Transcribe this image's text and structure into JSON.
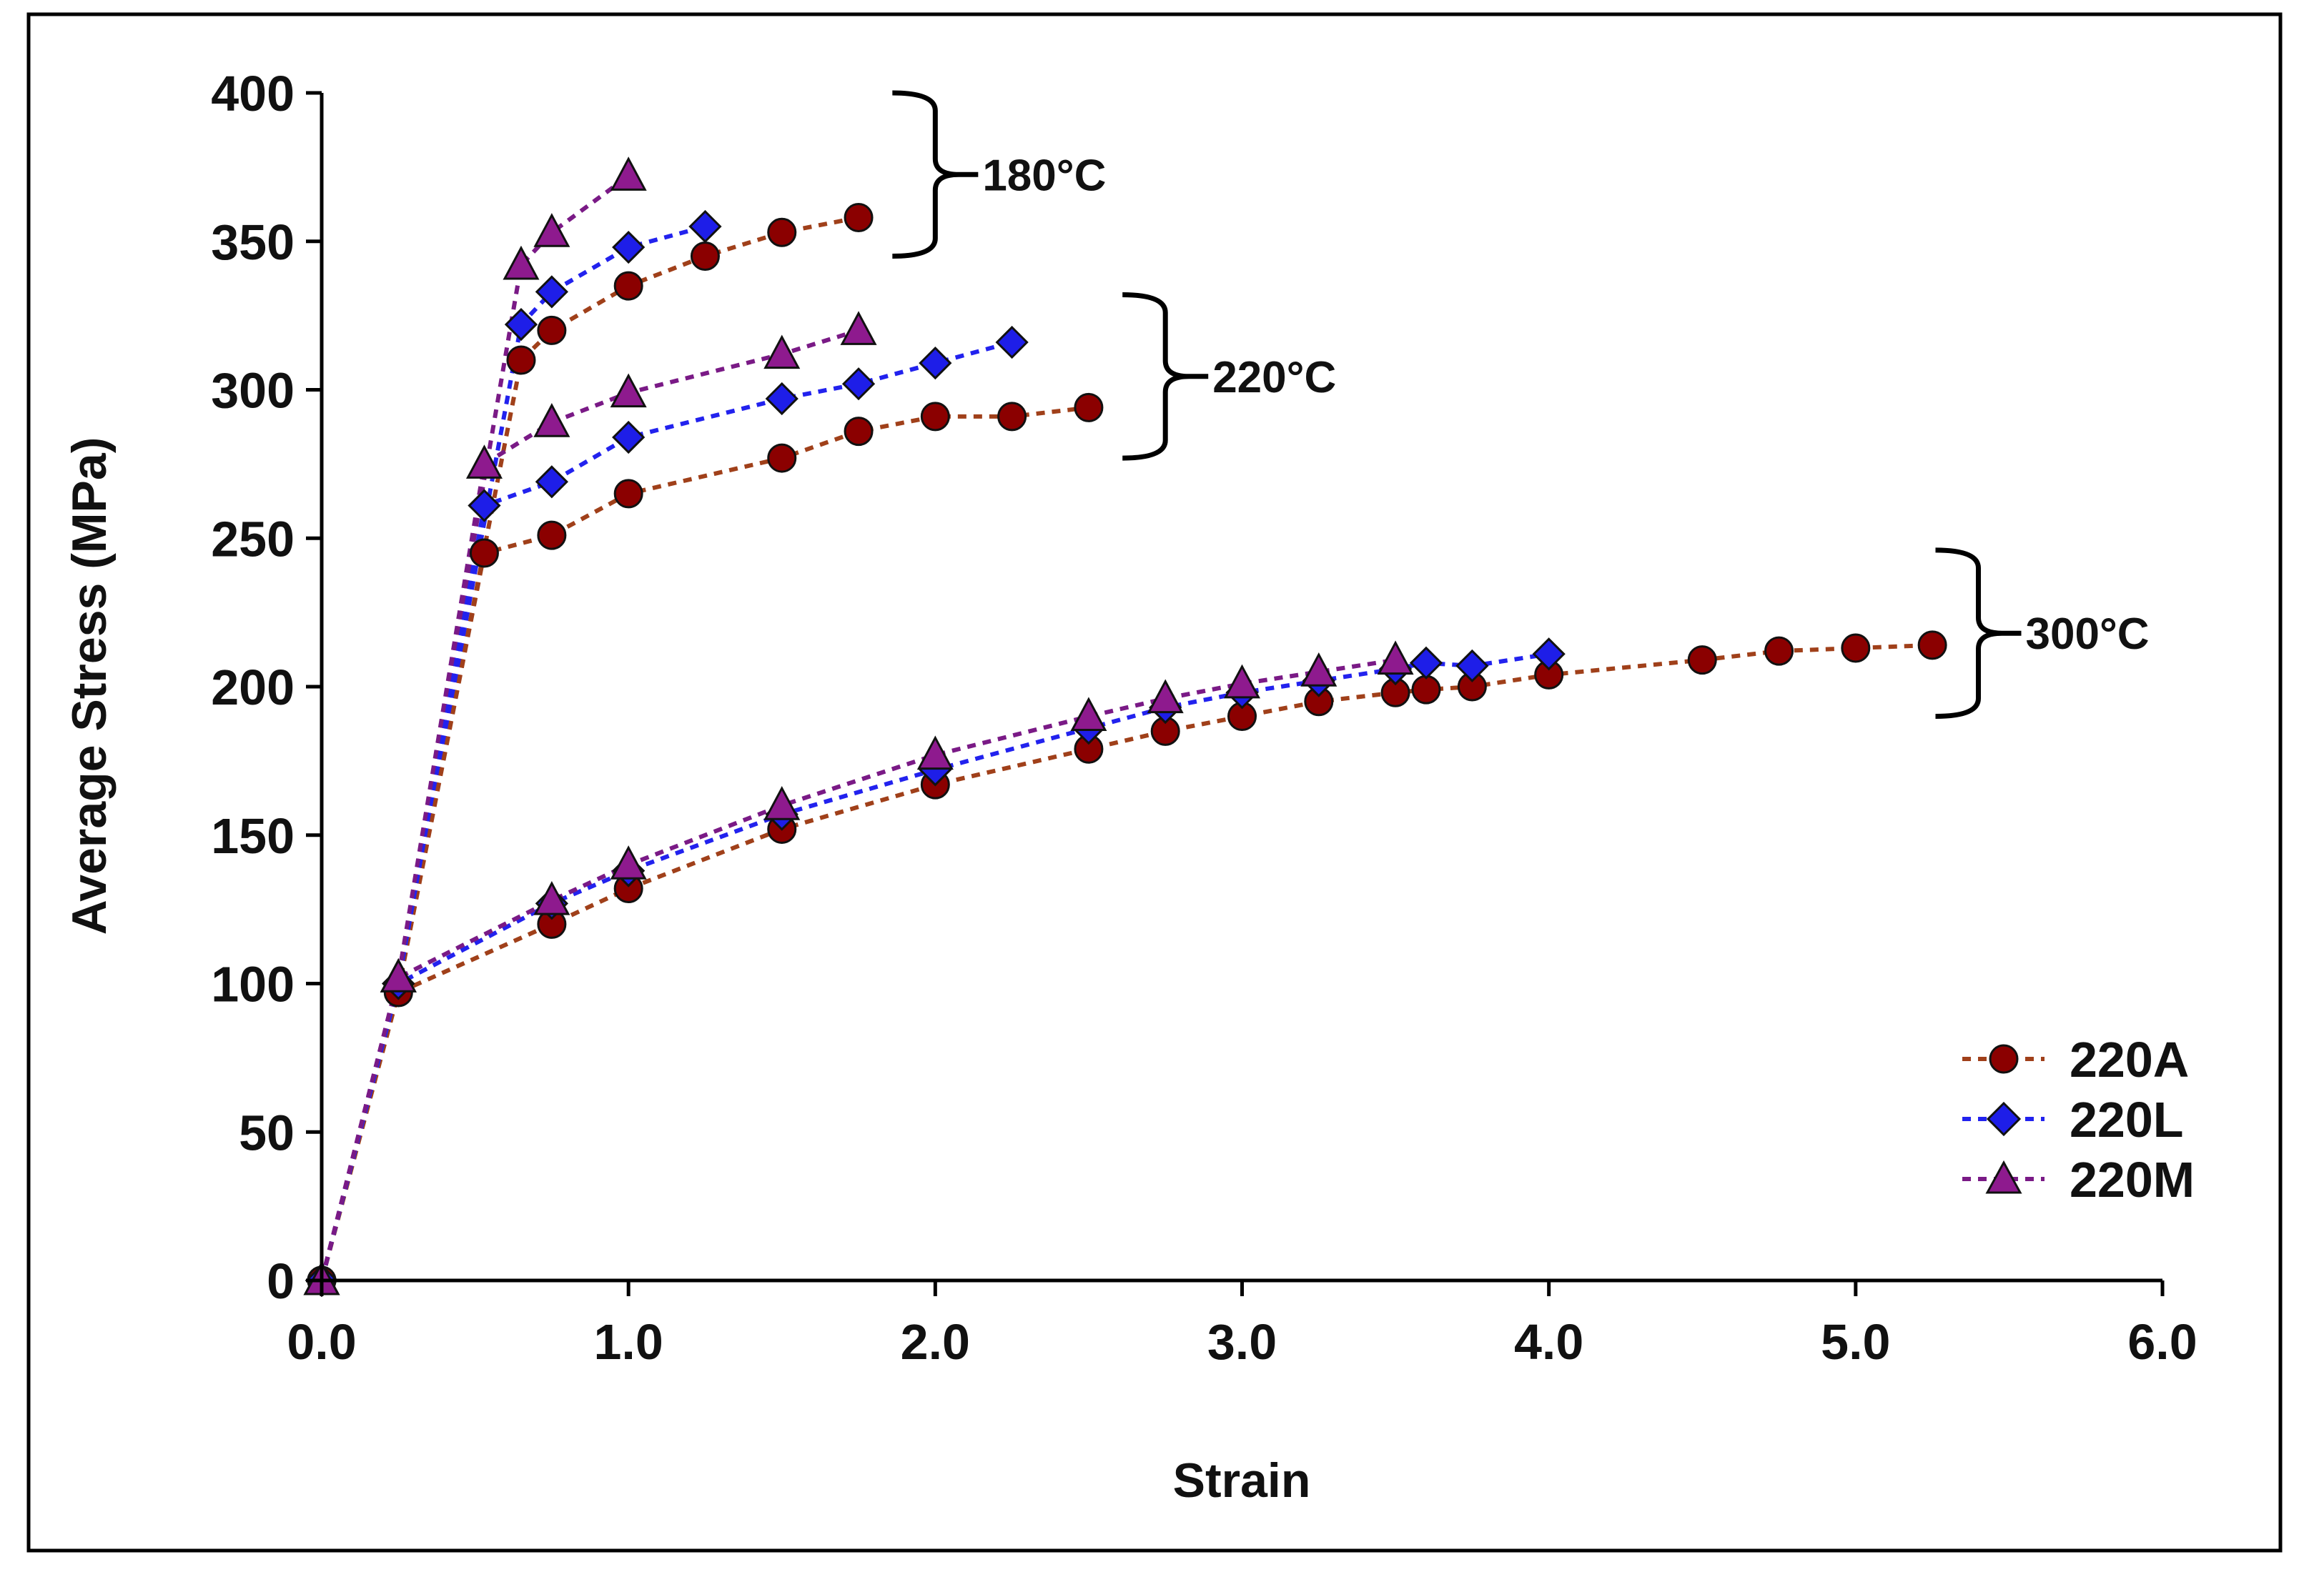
{
  "chart_data": {
    "type": "scatter",
    "title": "",
    "xlabel": "Strain",
    "ylabel": "Average Stress (MPa)",
    "xlim": [
      0,
      6
    ],
    "ylim": [
      0,
      400
    ],
    "x_ticks": [
      0,
      1,
      2,
      3,
      4,
      5,
      6
    ],
    "x_tick_labels": [
      "0.0",
      "1.0",
      "2.0",
      "3.0",
      "4.0",
      "5.0",
      "6.0"
    ],
    "y_ticks": [
      0,
      50,
      100,
      150,
      200,
      250,
      300,
      350,
      400
    ],
    "y_tick_labels": [
      "0",
      "50",
      "100",
      "150",
      "200",
      "250",
      "300",
      "350",
      "400"
    ],
    "grid": false,
    "legend_position": "bottom-right",
    "line_style": "dotted-with-markers",
    "legend": [
      {
        "name": "220A",
        "color": "#8B0000",
        "line_color": "#A0401A",
        "marker": "circle"
      },
      {
        "name": "220L",
        "color": "#1E1EE8",
        "line_color": "#2222EE",
        "marker": "diamond"
      },
      {
        "name": "220M",
        "color": "#8E1A8E",
        "line_color": "#7A1A86",
        "marker": "triangle"
      }
    ],
    "annotations": [
      {
        "text": "180°C",
        "y_range": [
          345,
          400
        ],
        "x_brace": 2.0
      },
      {
        "text": "220°C",
        "y_range": [
          277,
          332
        ],
        "x_brace": 2.75
      },
      {
        "text": "300°C",
        "y_range": [
          190,
          246
        ],
        "x_brace": 5.4
      }
    ],
    "groups": [
      {
        "temperature": "180°C",
        "series": [
          {
            "name": "220A",
            "x": [
              0,
              0.25,
              0.65,
              0.75,
              1.0,
              1.25,
              1.5,
              1.75
            ],
            "y": [
              0,
              98,
              310,
              320,
              335,
              345,
              353,
              358
            ]
          },
          {
            "name": "220L",
            "x": [
              0,
              0.25,
              0.65,
              0.75,
              1.0,
              1.25
            ],
            "y": [
              0,
              100,
              322,
              333,
              348,
              355
            ]
          },
          {
            "name": "220M",
            "x": [
              0,
              0.25,
              0.65,
              0.75,
              1.0
            ],
            "y": [
              0,
              102,
              342,
              353,
              372
            ]
          }
        ]
      },
      {
        "temperature": "220°C",
        "series": [
          {
            "name": "220A",
            "x": [
              0,
              0.25,
              0.53,
              0.75,
              1.0,
              1.5,
              1.75,
              2.0,
              2.25,
              2.5
            ],
            "y": [
              0,
              98,
              245,
              251,
              265,
              277,
              286,
              291,
              291,
              294
            ]
          },
          {
            "name": "220L",
            "x": [
              0,
              0.25,
              0.53,
              0.75,
              1.0,
              1.5,
              1.75,
              2.0,
              2.25
            ],
            "y": [
              0,
              100,
              261,
              269,
              284,
              297,
              302,
              309,
              316
            ]
          },
          {
            "name": "220M",
            "x": [
              0,
              0.25,
              0.53,
              0.75,
              1.0,
              1.5,
              1.75
            ],
            "y": [
              0,
              102,
              275,
              289,
              299,
              312,
              320
            ]
          }
        ]
      },
      {
        "temperature": "300°C",
        "series": [
          {
            "name": "220A",
            "x": [
              0,
              0.25,
              0.75,
              1.0,
              1.5,
              2.0,
              2.5,
              2.75,
              3.0,
              3.25,
              3.5,
              3.6,
              3.75,
              4.0,
              4.5,
              4.75,
              5.0,
              5.25
            ],
            "y": [
              0,
              97,
              120,
              132,
              152,
              167,
              179,
              185,
              190,
              195,
              198,
              199,
              200,
              204,
              209,
              212,
              213,
              214
            ]
          },
          {
            "name": "220L",
            "x": [
              0,
              0.25,
              0.75,
              1.0,
              1.5,
              2.0,
              2.5,
              2.75,
              3.0,
              3.25,
              3.5,
              3.6,
              3.75,
              4.0
            ],
            "y": [
              0,
              100,
              127,
              138,
              157,
              172,
              186,
              193,
              198,
              202,
              206,
              208,
              207,
              211
            ]
          },
          {
            "name": "220M",
            "x": [
              0,
              0.25,
              0.75,
              1.0,
              1.5,
              2.0,
              2.5,
              2.75,
              3.0,
              3.25,
              3.5
            ],
            "y": [
              0,
              102,
              128,
              140,
              160,
              177,
              190,
              196,
              201,
              205,
              209
            ]
          }
        ]
      }
    ]
  }
}
